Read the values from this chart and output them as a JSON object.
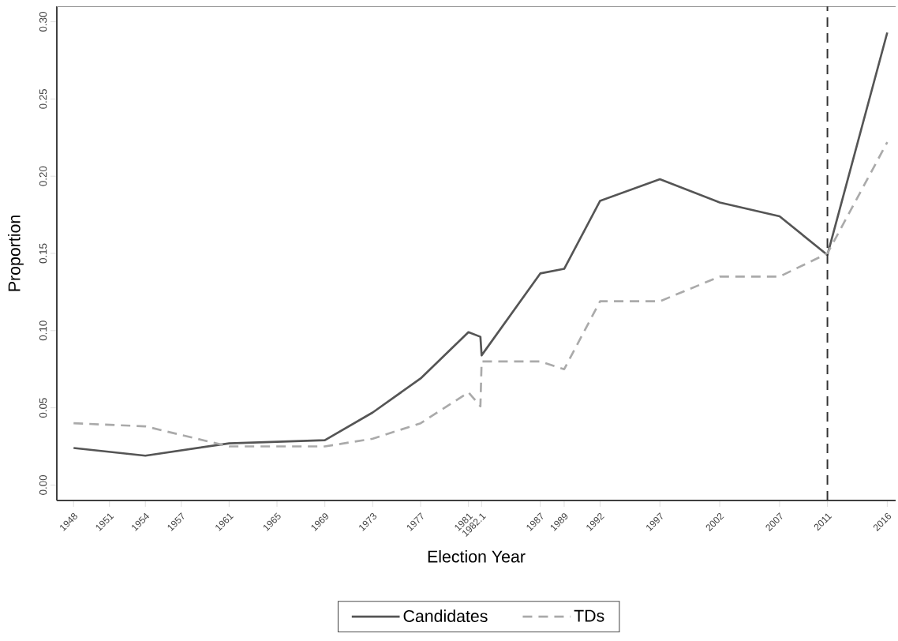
{
  "chart_data": {
    "type": "line",
    "xlabel": "Election Year",
    "ylabel": "Proportion",
    "x": [
      1948,
      1954,
      1961,
      1969,
      1973,
      1977,
      1981,
      1982,
      1982.1,
      1987,
      1989,
      1992,
      1997,
      2002,
      2007,
      2011,
      2016
    ],
    "series": [
      {
        "name": "Candidates",
        "color": "#555555",
        "line_style": "solid",
        "values": [
          0.024,
          0.019,
          0.027,
          0.029,
          0.047,
          0.069,
          0.099,
          0.096,
          0.084,
          0.137,
          0.14,
          0.184,
          0.198,
          0.183,
          0.174,
          0.149,
          0.293
        ]
      },
      {
        "name": "TDs",
        "color": "#aaaaaa",
        "line_style": "dashed",
        "values": [
          0.04,
          0.038,
          0.025,
          0.025,
          0.03,
          0.04,
          0.06,
          0.051,
          0.08,
          0.08,
          0.075,
          0.119,
          0.119,
          0.135,
          0.135,
          0.15,
          0.222
        ]
      }
    ],
    "xlim": [
      1946.6,
      2016.7
    ],
    "ylim": [
      -0.01,
      0.31
    ],
    "xticks": [
      1948,
      1951,
      1954,
      1957,
      1961,
      1965,
      1969,
      1973,
      1977,
      1981,
      1982.1,
      1987,
      1989,
      1992,
      1997,
      2002,
      2007,
      2011,
      2016
    ],
    "yticks": [
      {
        "value": 0,
        "label": "0.00"
      },
      {
        "value": 0.05,
        "label": "0.05"
      },
      {
        "value": 0.1,
        "label": "0.10"
      },
      {
        "value": 0.15,
        "label": "0.15"
      },
      {
        "value": 0.2,
        "label": "0.20"
      },
      {
        "value": 0.25,
        "label": "0.25"
      },
      {
        "value": 0.3,
        "label": "0.30"
      }
    ],
    "ref_lines": [
      {
        "axis": "x",
        "value": 2011,
        "color": "#333333",
        "line_style": "dashed"
      }
    ],
    "grid": false,
    "legend": "bottom",
    "marker": "none"
  }
}
